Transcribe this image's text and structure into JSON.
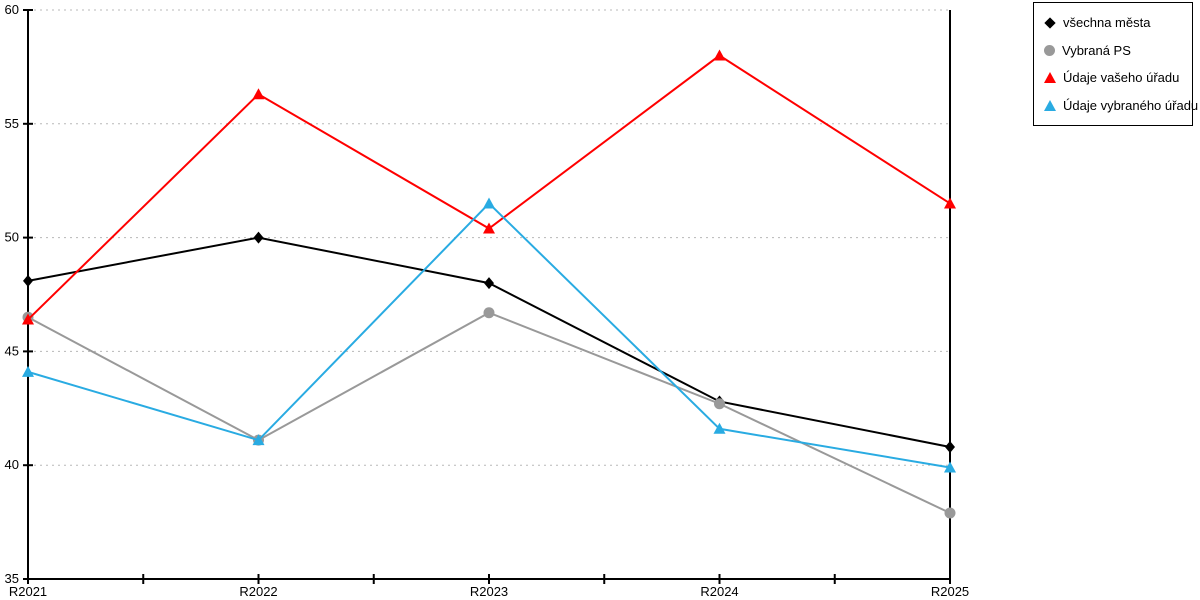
{
  "chart_data": {
    "type": "line",
    "title": "",
    "xlabel": "",
    "ylabel": "",
    "categories": [
      "R2021",
      "R2022",
      "R2023",
      "R2024",
      "R2025"
    ],
    "series": [
      {
        "name": "všechna města",
        "marker": "diamond",
        "color": "#000000",
        "values": [
          48.1,
          50.0,
          48.0,
          42.8,
          40.8
        ]
      },
      {
        "name": "Vybraná PS",
        "marker": "circle",
        "color": "#999999",
        "values": [
          46.5,
          41.1,
          46.7,
          42.7,
          37.9
        ]
      },
      {
        "name": "Údaje vašeho úřadu",
        "marker": "triangle",
        "color": "#ff0000",
        "values": [
          46.4,
          56.3,
          50.4,
          58.0,
          51.5
        ]
      },
      {
        "name": "Údaje vybraného úřadu",
        "marker": "triangle",
        "color": "#29abe2",
        "values": [
          44.1,
          41.1,
          51.5,
          41.6,
          39.9
        ]
      }
    ],
    "ylim": [
      35,
      60
    ],
    "y_ticks": [
      35,
      40,
      45,
      50,
      55,
      60
    ],
    "grid_ticks": [
      40,
      45,
      50,
      55,
      60
    ],
    "grid": "horizontal-dotted",
    "legend_position": "top-right"
  },
  "style": {
    "grid_color": "#b8b8b8",
    "axis_color": "#000000",
    "tick_label_color": "#000000"
  }
}
